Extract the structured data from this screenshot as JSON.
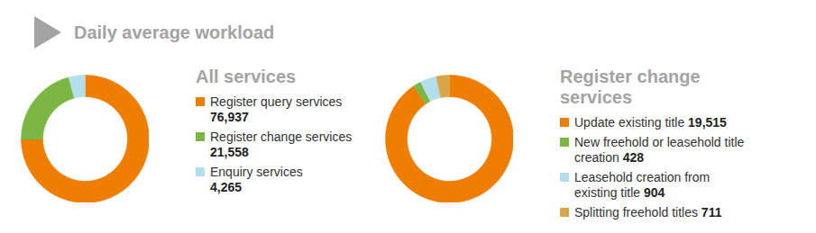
{
  "title": "Daily average workload",
  "chart_data": [
    {
      "type": "donut",
      "title": "All services",
      "categories": [
        "Register query services",
        "Register change services",
        "Enquiry services"
      ],
      "values": [
        76937,
        21558,
        4265
      ],
      "value_labels": [
        "76,937",
        "21,558",
        "4,265"
      ],
      "colors": [
        "#ef7d00",
        "#7cb743",
        "#b3deec"
      ],
      "legend": "right"
    },
    {
      "type": "donut",
      "title": "Register change services",
      "categories": [
        "Update existing title",
        "New freehold or leasehold title creation",
        "Leasehold creation from existing title",
        "Splitting freehold titles"
      ],
      "values": [
        19515,
        428,
        904,
        711
      ],
      "value_labels": [
        "19,515",
        "428",
        "904",
        "711"
      ],
      "colors": [
        "#ef7d00",
        "#7cb743",
        "#b3deec",
        "#d8a648"
      ],
      "legend": "right"
    }
  ]
}
